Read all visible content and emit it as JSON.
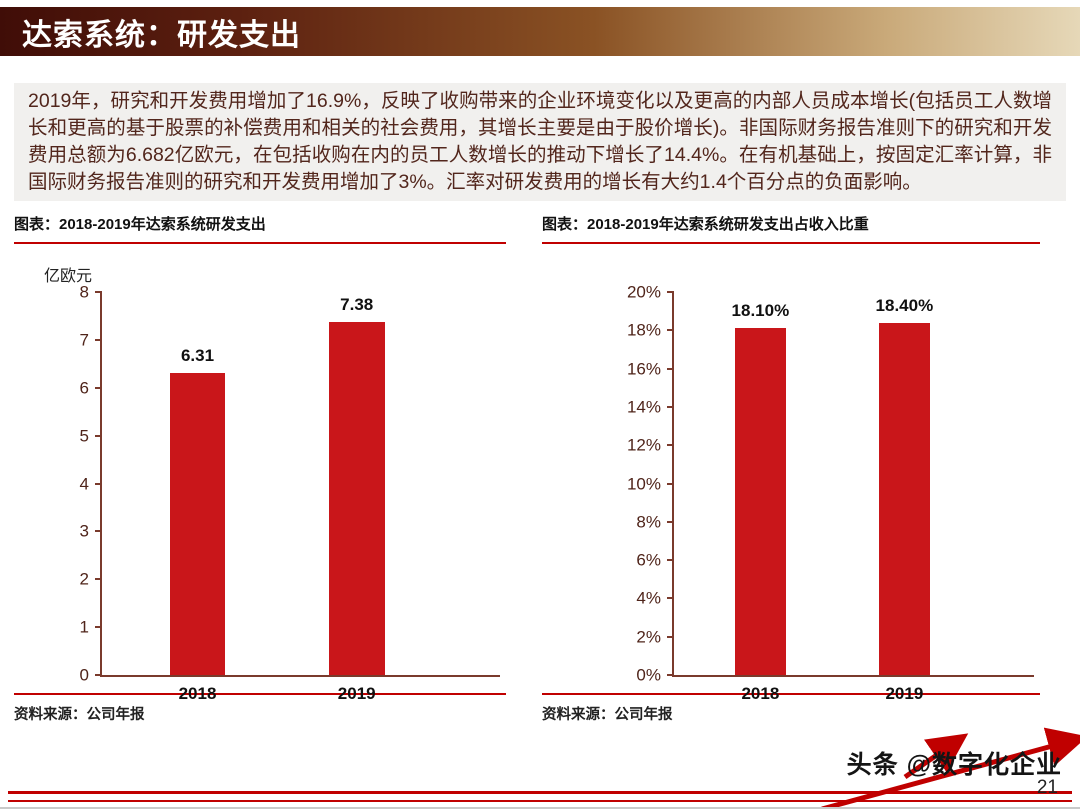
{
  "slide": {
    "title": "达索系统：研发支出",
    "page_number": "21",
    "watermark": "头条 @数字化企业"
  },
  "summary": {
    "text": "2019年，研究和开发费用增加了16.9%，反映了收购带来的企业环境变化以及更高的内部人员成本增长(包括员工人数增长和更高的基于股票的补偿费用和相关的社会费用，其增长主要是由于股价增长)。非国际财务报告准则下的研究和开发费用总额为6.682亿欧元，在包括收购在内的员工人数增长的推动下增长了14.4%。在有机基础上，按固定汇率计算，非国际财务报告准则的研究和开发费用增加了3%。汇率对研发费用的增长有大约1.4个百分点的负面影响。"
  },
  "colors": {
    "accent_red": "#c00000",
    "bar_red": "#c9161a"
  },
  "chart_data": [
    {
      "type": "bar",
      "title": "图表：2018-2019年达索系统研发支出",
      "categories": [
        "2018",
        "2019"
      ],
      "values": [
        6.31,
        7.38
      ],
      "value_labels": [
        "6.31",
        "7.38"
      ],
      "ylabel": "亿欧元",
      "xlabel": "",
      "ylim": [
        0,
        8
      ],
      "ytick_step": 1,
      "ytick_suffix": "",
      "grid": false,
      "legend": "none",
      "bar_color": "#c9161a",
      "source": "资料来源：公司年报"
    },
    {
      "type": "bar",
      "title": "图表：2018-2019年达索系统研发支出占收入比重",
      "categories": [
        "2018",
        "2019"
      ],
      "values": [
        18.1,
        18.4
      ],
      "value_labels": [
        "18.10%",
        "18.40%"
      ],
      "ylabel": "",
      "xlabel": "",
      "ylim": [
        0,
        20
      ],
      "ytick_step": 2,
      "ytick_suffix": "%",
      "grid": false,
      "legend": "none",
      "bar_color": "#c9161a",
      "source": "资料来源：公司年报"
    }
  ]
}
